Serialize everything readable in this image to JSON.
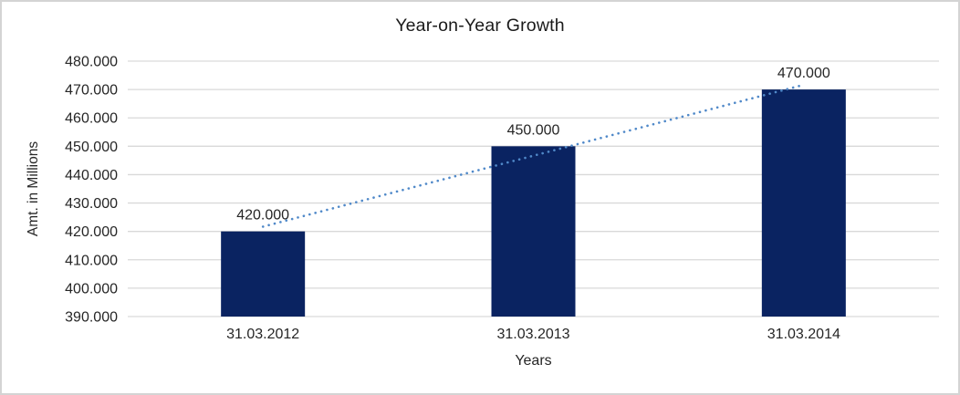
{
  "window": {
    "background": "#ffffff",
    "border_color": "#d4d4d4"
  },
  "chart_data": {
    "type": "bar",
    "title": "Year-on-Year Growth",
    "xlabel": "Years",
    "ylabel": "Amt. in Millions",
    "categories": [
      "31.03.2012",
      "31.03.2013",
      "31.03.2014"
    ],
    "values": [
      420000,
      450000,
      470000
    ],
    "data_labels": [
      "420.000",
      "450.000",
      "470.000"
    ],
    "ylim": [
      390000,
      480000
    ],
    "y_tick_step": 10000,
    "y_ticks": [
      {
        "value": 480000,
        "label": "480.000"
      },
      {
        "value": 470000,
        "label": "470.000"
      },
      {
        "value": 460000,
        "label": "460.000"
      },
      {
        "value": 450000,
        "label": "450.000"
      },
      {
        "value": 440000,
        "label": "440.000"
      },
      {
        "value": 430000,
        "label": "430.000"
      },
      {
        "value": 420000,
        "label": "420.000"
      },
      {
        "value": 410000,
        "label": "410.000"
      },
      {
        "value": 400000,
        "label": "400.000"
      },
      {
        "value": 390000,
        "label": "390.000"
      }
    ],
    "grid": true,
    "legend": "none",
    "trendline": {
      "kind": "linear",
      "style": "dotted",
      "color": "#5089c9"
    },
    "colors": {
      "bar": "#0a2361",
      "gridline": "#d9d9d9",
      "text": "#262626",
      "title": "#1a1a1a"
    }
  }
}
